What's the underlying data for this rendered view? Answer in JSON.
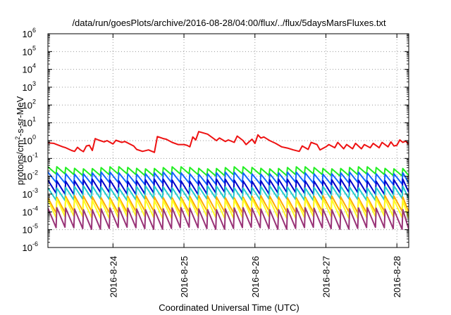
{
  "chart_data": {
    "type": "line",
    "title": "/data/run/goesPlots/archive/2016-08-28/04:00/flux/../flux/5daysMarsFluxes.txt",
    "xlabel": "Coordinated Universal Time (UTC)",
    "ylabel": {
      "base": "protons/cm",
      "sup": "2",
      "rest": "-s-sr-MeV"
    },
    "y_scale": "log",
    "ylim": [
      1e-06,
      1000000.0
    ],
    "y_ticks": [
      {
        "value": 1e-06,
        "base": "10",
        "exp": "-6"
      },
      {
        "value": 1e-05,
        "base": "10",
        "exp": "-5"
      },
      {
        "value": 0.0001,
        "base": "10",
        "exp": "-4"
      },
      {
        "value": 0.001,
        "base": "10",
        "exp": "-3"
      },
      {
        "value": 0.01,
        "base": "10",
        "exp": "-2"
      },
      {
        "value": 0.1,
        "base": "10",
        "exp": "-1"
      },
      {
        "value": 1.0,
        "base": "10",
        "exp": "0"
      },
      {
        "value": 10.0,
        "base": "10",
        "exp": "1"
      },
      {
        "value": 100.0,
        "base": "10",
        "exp": "2"
      },
      {
        "value": 1000.0,
        "base": "10",
        "exp": "3"
      },
      {
        "value": 10000.0,
        "base": "10",
        "exp": "4"
      },
      {
        "value": 100000.0,
        "base": "10",
        "exp": "5"
      },
      {
        "value": 1000000.0,
        "base": "10",
        "exp": "6"
      }
    ],
    "xlim": [
      "2016-08-23 02:00",
      "2016-08-28 04:00"
    ],
    "x_ticks": [
      {
        "value": "2016-08-24 00:00",
        "label": "2016-8-24"
      },
      {
        "value": "2016-08-25 00:00",
        "label": "2016-8-25"
      },
      {
        "value": "2016-08-26 00:00",
        "label": "2016-8-26"
      },
      {
        "value": "2016-08-27 00:00",
        "label": "2016-8-27"
      },
      {
        "value": "2016-08-28 00:00",
        "label": "2016-8-28"
      }
    ],
    "grid": true,
    "series": [
      {
        "color": "#ee1111",
        "x": [
          "2016-08-23 02:00",
          "2016-08-23 04:00",
          "2016-08-23 07:00",
          "2016-08-23 08:00",
          "2016-08-23 10:00",
          "2016-08-23 11:00",
          "2016-08-23 12:00",
          "2016-08-23 13:00",
          "2016-08-23 14:00",
          "2016-08-23 15:00",
          "2016-08-23 16:00",
          "2016-08-23 17:00",
          "2016-08-23 18:00",
          "2016-08-23 19:00",
          "2016-08-23 21:00",
          "2016-08-23 22:00",
          "2016-08-24 00:00",
          "2016-08-24 01:00",
          "2016-08-24 03:00",
          "2016-08-24 04:00",
          "2016-08-24 07:00",
          "2016-08-24 08:00",
          "2016-08-24 10:00",
          "2016-08-24 12:00",
          "2016-08-24 14:00",
          "2016-08-24 15:00",
          "2016-08-24 17:00",
          "2016-08-24 18:00",
          "2016-08-24 20:00",
          "2016-08-24 22:00",
          "2016-08-25 00:00",
          "2016-08-25 01:00",
          "2016-08-25 02:00",
          "2016-08-25 03:00",
          "2016-08-25 04:00",
          "2016-08-25 05:00",
          "2016-08-25 08:00",
          "2016-08-25 11:00",
          "2016-08-25 12:00",
          "2016-08-25 14:00",
          "2016-08-25 15:00",
          "2016-08-25 17:00",
          "2016-08-25 18:00",
          "2016-08-25 20:00",
          "2016-08-25 21:00",
          "2016-08-25 23:00",
          "2016-08-26 00:00",
          "2016-08-26 01:00",
          "2016-08-26 02:00",
          "2016-08-26 03:00",
          "2016-08-26 05:00",
          "2016-08-26 07:00",
          "2016-08-26 09:00",
          "2016-08-26 11:00",
          "2016-08-26 13:00",
          "2016-08-26 15:00",
          "2016-08-26 16:00",
          "2016-08-26 18:00",
          "2016-08-26 19:00",
          "2016-08-26 21:00",
          "2016-08-26 22:00",
          "2016-08-27 00:00",
          "2016-08-27 01:00",
          "2016-08-27 03:00",
          "2016-08-27 04:00",
          "2016-08-27 06:00",
          "2016-08-27 07:00",
          "2016-08-27 09:00",
          "2016-08-27 10:00",
          "2016-08-27 12:00",
          "2016-08-27 13:00",
          "2016-08-27 15:00",
          "2016-08-27 16:00",
          "2016-08-27 18:00",
          "2016-08-27 19:00",
          "2016-08-27 21:00",
          "2016-08-27 22:00",
          "2016-08-27 23:00",
          "2016-08-28 00:00",
          "2016-08-28 01:00",
          "2016-08-28 02:00",
          "2016-08-28 03:00",
          "2016-08-28 04:00"
        ],
        "values": [
          0.75,
          0.7,
          0.45,
          0.4,
          0.28,
          0.25,
          0.42,
          0.3,
          0.24,
          0.5,
          0.55,
          0.28,
          1.3,
          1.1,
          0.85,
          1.0,
          0.65,
          1.05,
          0.8,
          0.9,
          0.5,
          0.32,
          0.25,
          0.3,
          0.22,
          1.7,
          1.3,
          1.2,
          0.8,
          0.6,
          0.6,
          0.55,
          0.45,
          1.6,
          1.1,
          3.2,
          2.3,
          1.0,
          1.4,
          0.9,
          1.1,
          0.8,
          1.8,
          1.0,
          0.6,
          1.2,
          0.7,
          2.1,
          1.4,
          1.6,
          1.0,
          0.7,
          0.45,
          0.38,
          0.3,
          0.25,
          0.5,
          0.32,
          0.8,
          0.6,
          0.3,
          0.45,
          0.6,
          0.4,
          0.8,
          0.35,
          0.6,
          0.35,
          0.7,
          0.35,
          0.6,
          0.4,
          0.7,
          0.4,
          0.8,
          0.45,
          0.85,
          0.5,
          0.55,
          1.1,
          0.8,
          0.95,
          0.6
        ]
      },
      {
        "color": "#22ee22",
        "x": [
          "2016-08-23 02:00",
          "2016-08-28 04:00"
        ],
        "values": [
          0.028,
          0.011
        ],
        "sawtooth": {
          "peak": 0.03,
          "trough": 0.012,
          "period_hours": 3
        }
      },
      {
        "color": "#1166ff",
        "x": [
          "2016-08-23 02:00",
          "2016-08-28 04:00"
        ],
        "values": [
          0.015,
          0.004
        ],
        "sawtooth": {
          "peak": 0.015,
          "trough": 0.004,
          "period_hours": 3
        }
      },
      {
        "color": "#0000cc",
        "x": [
          "2016-08-23 02:00",
          "2016-08-28 04:00"
        ],
        "values": [
          0.006,
          0.0012
        ],
        "sawtooth": {
          "peak": 0.006,
          "trough": 0.0011,
          "period_hours": 3
        }
      },
      {
        "color": "#22cccc",
        "x": [
          "2016-08-23 02:00",
          "2016-08-28 04:00"
        ],
        "values": [
          0.003,
          0.0006
        ],
        "sawtooth": {
          "peak": 0.0025,
          "trough": 0.0005,
          "period_hours": 3
        }
      },
      {
        "color": "#ffaa00",
        "x": [
          "2016-08-23 02:00",
          "2016-08-28 04:00"
        ],
        "values": [
          0.0007,
          0.0001
        ],
        "sawtooth": {
          "peak": 0.0007,
          "trough": 0.0001,
          "period_hours": 3
        }
      },
      {
        "color": "#ffff22",
        "x": [
          "2016-08-23 02:00",
          "2016-08-28 04:00"
        ],
        "values": [
          0.0004,
          5e-05
        ],
        "sawtooth": {
          "peak": 0.0005,
          "trough": 5e-05,
          "period_hours": 3
        }
      },
      {
        "color": "#993377",
        "x": [
          "2016-08-23 02:00",
          "2016-08-28 04:00"
        ],
        "values": [
          0.0001,
          1e-05
        ],
        "sawtooth": {
          "peak": 0.00015,
          "trough": 1.2e-05,
          "period_hours": 3
        }
      }
    ]
  }
}
